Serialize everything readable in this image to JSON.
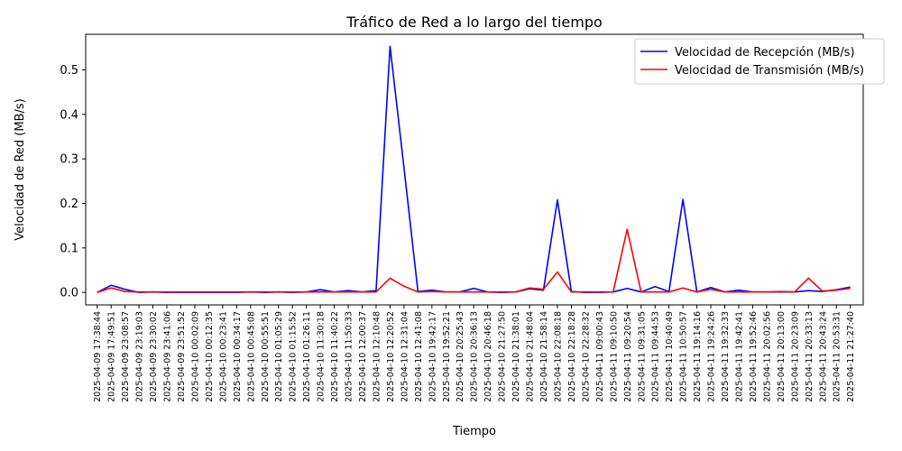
{
  "chart_data": {
    "type": "line",
    "title": "Tráfico de Red a lo largo del tiempo",
    "xlabel": "Tiempo",
    "ylabel": "Velocidad de Red (MB/s)",
    "ylim": [
      -0.028,
      0.58
    ],
    "yticks": [
      0.0,
      0.1,
      0.2,
      0.3,
      0.4,
      0.5
    ],
    "grid": false,
    "legend_position": "top-right",
    "x": [
      "2025-04-09 17:38:44",
      "2025-04-09 17:49:51",
      "2025-04-09 23:08:57",
      "2025-04-09 23:19:03",
      "2025-04-09 23:30:02",
      "2025-04-09 23:41:06",
      "2025-04-09 23:51:52",
      "2025-04-10 00:02:09",
      "2025-04-10 00:12:35",
      "2025-04-10 00:23:41",
      "2025-04-10 00:34:17",
      "2025-04-10 00:45:08",
      "2025-04-10 00:55:51",
      "2025-04-10 01:05:29",
      "2025-04-10 01:15:52",
      "2025-04-10 01:26:11",
      "2025-04-10 11:30:18",
      "2025-04-10 11:40:22",
      "2025-04-10 11:50:33",
      "2025-04-10 12:00:37",
      "2025-04-10 12:10:48",
      "2025-04-10 12:20:52",
      "2025-04-10 12:31:04",
      "2025-04-10 12:41:08",
      "2025-04-10 19:42:17",
      "2025-04-10 19:52:21",
      "2025-04-10 20:25:43",
      "2025-04-10 20:36:13",
      "2025-04-10 20:46:18",
      "2025-04-10 21:27:50",
      "2025-04-10 21:38:01",
      "2025-04-10 21:48:04",
      "2025-04-10 21:58:14",
      "2025-04-10 22:08:18",
      "2025-04-10 22:18:28",
      "2025-04-10 22:28:32",
      "2025-04-11 09:00:43",
      "2025-04-11 09:10:50",
      "2025-04-11 09:20:54",
      "2025-04-11 09:31:05",
      "2025-04-11 09:44:53",
      "2025-04-11 10:40:49",
      "2025-04-11 10:50:57",
      "2025-04-11 19:14:16",
      "2025-04-11 19:24:26",
      "2025-04-11 19:32:33",
      "2025-04-11 19:42:41",
      "2025-04-11 19:52:46",
      "2025-04-11 20:02:56",
      "2025-04-11 20:13:00",
      "2025-04-11 20:23:09",
      "2025-04-11 20:33:13",
      "2025-04-11 20:43:24",
      "2025-04-11 20:53:31",
      "2025-04-11 21:27:40"
    ],
    "series": [
      {
        "name": "Velocidad de Recepción (MB/s)",
        "color": "#0000ff",
        "values": [
          0.0,
          0.016,
          0.007,
          0.0,
          0.001,
          0.0,
          0.0,
          0.0,
          0.0,
          0.0,
          0.0,
          0.001,
          0.0,
          0.001,
          0.0,
          0.001,
          0.006,
          0.001,
          0.004,
          0.001,
          0.004,
          0.553,
          0.28,
          0.002,
          0.005,
          0.001,
          0.001,
          0.009,
          0.001,
          0.0,
          0.001,
          0.008,
          0.005,
          0.208,
          0.002,
          0.0,
          0.0,
          0.001,
          0.009,
          0.001,
          0.013,
          0.002,
          0.209,
          0.001,
          0.011,
          0.001,
          0.005,
          0.001,
          0.001,
          0.001,
          0.001,
          0.004,
          0.002,
          0.006,
          0.012
        ]
      },
      {
        "name": "Velocidad de Transmisión (MB/s)",
        "color": "#ff0000",
        "values": [
          0.0,
          0.01,
          0.002,
          0.001,
          0.001,
          0.001,
          0.001,
          0.001,
          0.001,
          0.001,
          0.001,
          0.001,
          0.001,
          0.001,
          0.001,
          0.001,
          0.001,
          0.001,
          0.001,
          0.001,
          0.001,
          0.032,
          0.014,
          0.001,
          0.002,
          0.001,
          0.001,
          0.001,
          0.001,
          0.001,
          0.001,
          0.01,
          0.007,
          0.046,
          0.001,
          0.001,
          0.001,
          0.001,
          0.142,
          0.001,
          0.001,
          0.001,
          0.01,
          0.001,
          0.007,
          0.001,
          0.001,
          0.001,
          0.001,
          0.002,
          0.001,
          0.032,
          0.003,
          0.005,
          0.009
        ]
      }
    ]
  }
}
